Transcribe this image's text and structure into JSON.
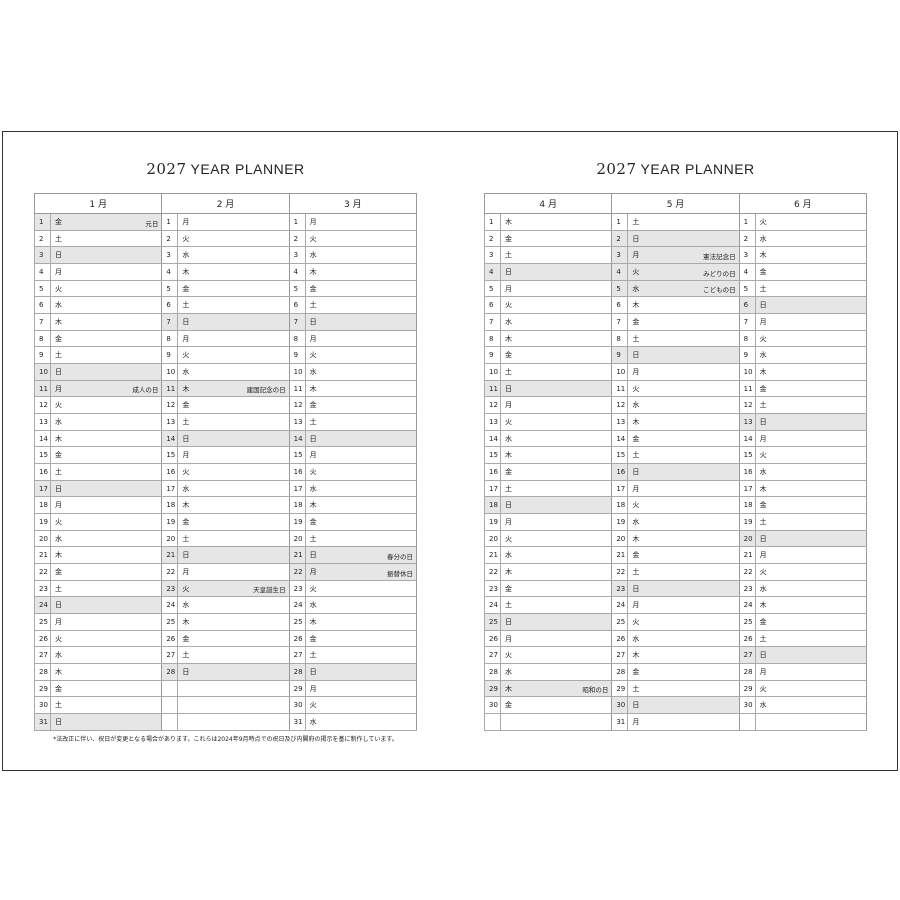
{
  "pages": [
    {
      "title_year": "2027",
      "title_text": "YEAR PLANNER",
      "months": [
        {
          "label": "1 月",
          "days": [
            "金",
            "土",
            "日",
            "月",
            "火",
            "水",
            "木",
            "金",
            "土",
            "日",
            "月",
            "火",
            "水",
            "木",
            "金",
            "土",
            "日",
            "月",
            "火",
            "水",
            "木",
            "金",
            "土",
            "日",
            "月",
            "火",
            "水",
            "木",
            "金",
            "土",
            "日"
          ],
          "holidays": {
            "1": "元日",
            "11": "成人の日"
          },
          "shaded": [
            1,
            3,
            10,
            11,
            17,
            24,
            31
          ]
        },
        {
          "label": "2 月",
          "days": [
            "月",
            "火",
            "水",
            "木",
            "金",
            "土",
            "日",
            "月",
            "火",
            "水",
            "木",
            "金",
            "土",
            "日",
            "月",
            "火",
            "水",
            "木",
            "金",
            "土",
            "日",
            "月",
            "火",
            "水",
            "木",
            "金",
            "土",
            "日"
          ],
          "holidays": {
            "11": "建国記念の日",
            "23": "天皇誕生日"
          },
          "shaded": [
            7,
            11,
            14,
            21,
            23,
            28
          ]
        },
        {
          "label": "3 月",
          "days": [
            "月",
            "火",
            "水",
            "木",
            "金",
            "土",
            "日",
            "月",
            "火",
            "水",
            "木",
            "金",
            "土",
            "日",
            "月",
            "火",
            "水",
            "木",
            "金",
            "土",
            "日",
            "月",
            "火",
            "水",
            "木",
            "金",
            "土",
            "日",
            "月",
            "火",
            "水"
          ],
          "holidays": {
            "21": "春分の日",
            "22": "振替休日"
          },
          "shaded": [
            7,
            14,
            21,
            22,
            28
          ]
        }
      ],
      "note": "*法改正に伴い、祝日が変更となる場合があります。これらは2024年9月時点での祝日及び内閣府の掲示を基に制作しています。"
    },
    {
      "title_year": "2027",
      "title_text": "YEAR PLANNER",
      "months": [
        {
          "label": "4 月",
          "days": [
            "木",
            "金",
            "土",
            "日",
            "月",
            "火",
            "水",
            "木",
            "金",
            "土",
            "日",
            "月",
            "火",
            "水",
            "木",
            "金",
            "土",
            "日",
            "月",
            "火",
            "水",
            "木",
            "金",
            "土",
            "日",
            "月",
            "火",
            "水",
            "木",
            "金"
          ],
          "holidays": {
            "29": "昭和の日"
          },
          "shaded": [
            4,
            11,
            18,
            25,
            29
          ]
        },
        {
          "label": "5 月",
          "days": [
            "土",
            "日",
            "月",
            "火",
            "水",
            "木",
            "金",
            "土",
            "日",
            "月",
            "火",
            "水",
            "木",
            "金",
            "土",
            "日",
            "月",
            "火",
            "水",
            "木",
            "金",
            "土",
            "日",
            "月",
            "火",
            "水",
            "木",
            "金",
            "土",
            "日",
            "月"
          ],
          "holidays": {
            "3": "憲法記念日",
            "4": "みどりの日",
            "5": "こどもの日"
          },
          "shaded": [
            2,
            3,
            4,
            5,
            9,
            16,
            23,
            30
          ]
        },
        {
          "label": "6 月",
          "days": [
            "火",
            "水",
            "木",
            "金",
            "土",
            "日",
            "月",
            "火",
            "水",
            "木",
            "金",
            "土",
            "日",
            "月",
            "火",
            "水",
            "木",
            "金",
            "土",
            "日",
            "月",
            "火",
            "水",
            "木",
            "金",
            "土",
            "日",
            "月",
            "火",
            "水"
          ],
          "holidays": {},
          "shaded": [
            6,
            13,
            20,
            27
          ]
        }
      ],
      "note": ""
    }
  ],
  "colors": {
    "shade": "#e6e6e6",
    "border": "#333333"
  }
}
